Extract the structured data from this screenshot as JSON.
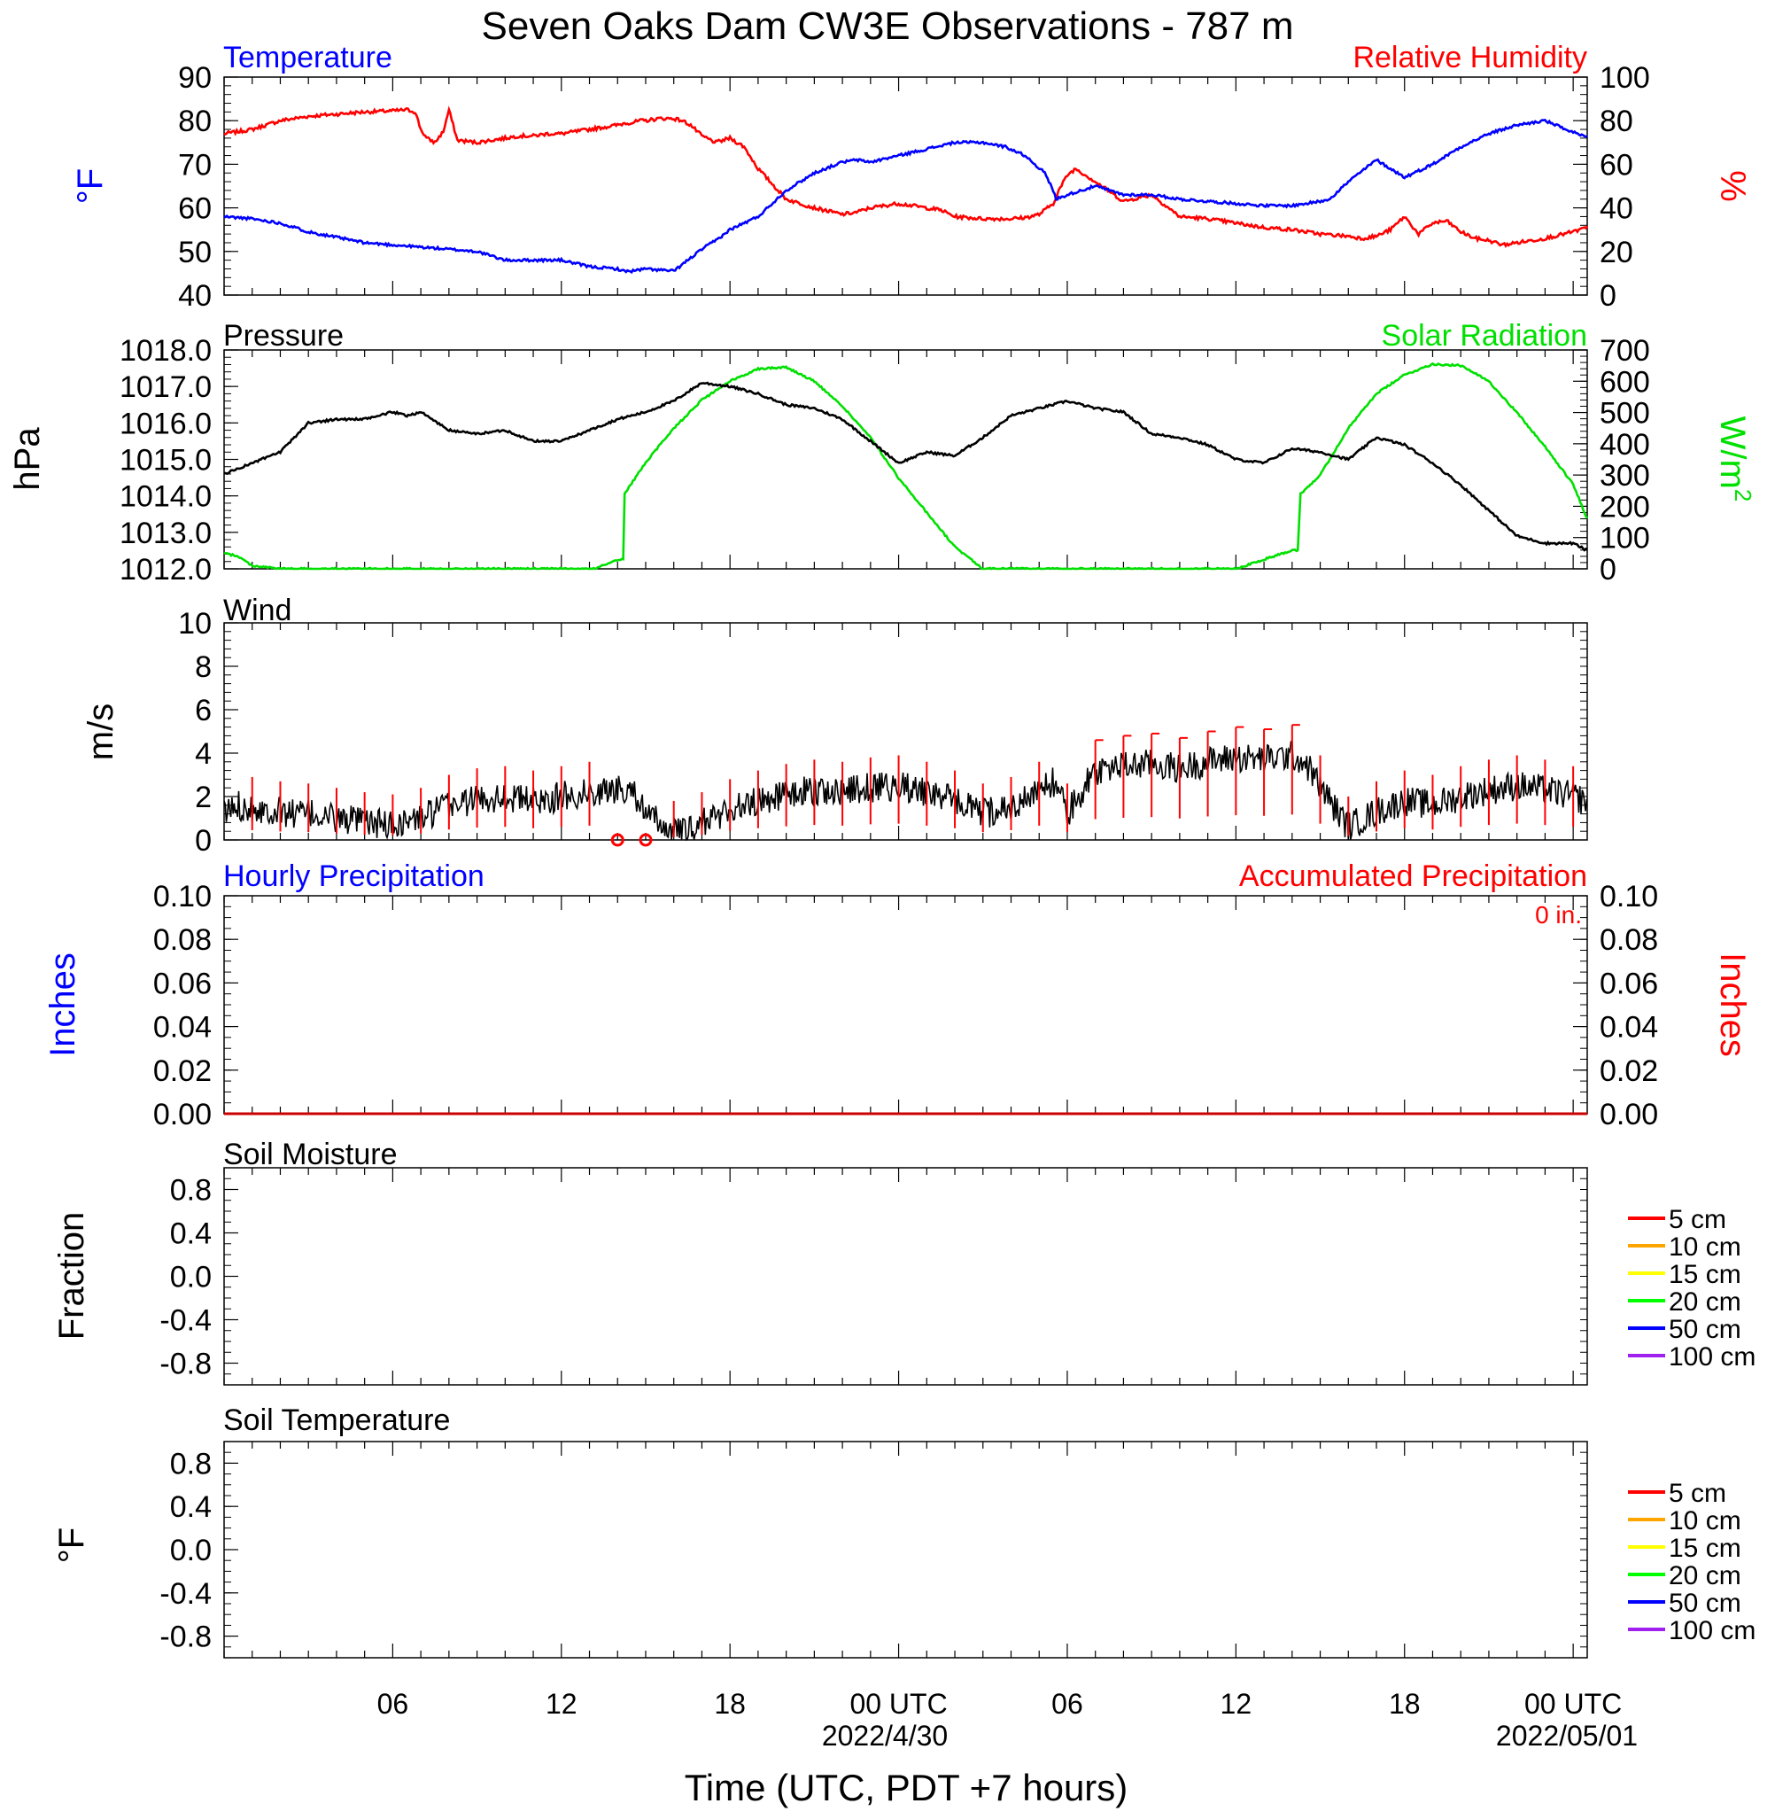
{
  "title": "Seven Oaks Dam CW3E Observations - 787 m",
  "colors": {
    "temperature": "#0000ff",
    "humidity": "#ff0000",
    "pressure": "#000000",
    "solar": "#00e000",
    "wind": "#000000",
    "barb": "#ff0000",
    "soil": [
      "#ff0000",
      "#ffa500",
      "#ffff00",
      "#00ff00",
      "#0000ff",
      "#a020f0"
    ]
  },
  "x_axis": {
    "label": "Time (UTC, PDT +7 hours)",
    "ticks": [
      "06",
      "12",
      "18",
      "00 UTC",
      "06",
      "12",
      "18",
      "00 UTC"
    ],
    "dates": [
      "2022/4/30",
      "2022/05/01"
    ]
  },
  "chart_data": [
    {
      "type": "line",
      "title_left": "Temperature",
      "title_right": "Relative Humidity",
      "ylabel_left": "°F",
      "ylabel_right": "%",
      "ylim_left": [
        40,
        90
      ],
      "ylim_right": [
        0,
        100
      ],
      "yticks_left": [
        "40",
        "50",
        "60",
        "70",
        "80",
        "90"
      ],
      "yticks_right": [
        "0",
        "20",
        "40",
        "60",
        "80",
        "100"
      ],
      "series": [
        {
          "name": "Temperature",
          "axis": "left",
          "x": [
            0,
            1,
            2,
            3,
            5,
            7,
            9,
            10,
            12,
            13,
            14,
            14.2,
            14.5,
            15,
            16,
            17,
            17.6,
            18,
            19,
            20,
            21,
            22,
            22.5,
            23,
            24,
            25,
            26,
            27,
            27.8,
            28.5,
            29.2,
            29.5,
            29.6,
            30,
            31,
            32,
            33,
            34,
            35,
            36,
            37,
            38,
            38.5,
            39,
            39.3,
            39.5,
            40,
            41,
            42,
            43,
            44,
            45,
            46,
            47,
            48.5
          ],
          "y": [
            58,
            57.5,
            56.5,
            54.5,
            52,
            51,
            50,
            48,
            48,
            46.5,
            46,
            45.5,
            45.5,
            46,
            45.5,
            50.5,
            53,
            55,
            58,
            64,
            68,
            70.5,
            71,
            70.5,
            72,
            73.5,
            75,
            75,
            74,
            72,
            68,
            64,
            62,
            63,
            65,
            63,
            63,
            62,
            61.5,
            61,
            60.5,
            60.5,
            61,
            61.5,
            62,
            63,
            66,
            71,
            67,
            70,
            74,
            77,
            79,
            80,
            76
          ]
        },
        {
          "name": "Relative Humidity",
          "axis": "right",
          "x": [
            0,
            1,
            1.5,
            2,
            3,
            4,
            5,
            6,
            6.5,
            6.8,
            7.0,
            7.2,
            7.5,
            7.8,
            8.0,
            8.3,
            9,
            10,
            10.5,
            11,
            11.5,
            12,
            13,
            14,
            14.3,
            14.5,
            14.8,
            15,
            15.5,
            16,
            16.3,
            16.6,
            17,
            17.5,
            18,
            18.5,
            19,
            20,
            21,
            22,
            22.5,
            23,
            24,
            24.5,
            25,
            25.5,
            26,
            27,
            28,
            28.5,
            29,
            29.5,
            29.7,
            30,
            30.3,
            31,
            32,
            33,
            34,
            35,
            36,
            37,
            38,
            38.5,
            39,
            40,
            40.5,
            41,
            41.5,
            42,
            42.5,
            43,
            43.5,
            44,
            44.5,
            45,
            45.5,
            46,
            47,
            48,
            48.5
          ],
          "y": [
            74,
            76,
            78,
            80,
            82,
            83,
            84,
            84.5,
            85,
            84,
            76,
            72,
            70,
            75,
            85,
            71,
            70,
            72,
            73,
            73,
            74,
            74,
            76,
            78,
            79,
            79,
            80,
            80,
            81,
            81,
            80,
            78,
            73,
            70,
            72,
            68,
            58,
            44,
            40,
            37,
            38,
            40,
            42,
            41,
            40,
            39,
            36,
            35,
            35,
            35.5,
            37,
            42,
            48,
            55,
            58,
            52,
            43,
            46,
            36,
            35,
            33,
            31,
            30,
            29,
            28,
            27,
            26,
            27,
            30,
            36,
            28,
            33,
            34,
            29,
            26,
            25,
            23,
            24,
            26,
            29,
            31
          ]
        }
      ]
    },
    {
      "type": "line",
      "title_left": "Pressure",
      "title_right": "Solar Radiation",
      "ylabel_left": "hPa",
      "ylabel_right": "W/m",
      "ylabel_right_sup": "2",
      "ylim_left": [
        1012,
        1018
      ],
      "ylim_right": [
        0,
        700
      ],
      "yticks_left": [
        "1012.0",
        "1013.0",
        "1014.0",
        "1015.0",
        "1016.0",
        "1017.0",
        "1018.0"
      ],
      "yticks_right": [
        "0",
        "100",
        "200",
        "300",
        "400",
        "500",
        "600",
        "700"
      ],
      "series": [
        {
          "name": "Pressure",
          "axis": "left",
          "x": [
            0,
            1,
            2,
            3,
            4,
            5,
            6,
            6.5,
            7,
            8,
            9,
            10,
            11,
            12,
            13,
            14,
            15,
            16,
            17,
            18,
            18.5,
            19,
            20,
            21,
            22,
            23,
            24,
            25,
            26,
            27,
            28,
            29,
            30,
            31,
            32,
            33,
            34,
            35,
            36,
            37,
            38,
            39,
            40,
            40.5,
            41,
            42,
            43,
            44,
            45,
            46,
            47,
            48,
            48.5
          ],
          "y": [
            1014.6,
            1014.9,
            1015.2,
            1016.0,
            1016.1,
            1016.1,
            1016.3,
            1016.2,
            1016.3,
            1015.8,
            1015.7,
            1015.8,
            1015.5,
            1015.5,
            1015.8,
            1016.1,
            1016.3,
            1016.6,
            1017.1,
            1017.0,
            1016.9,
            1016.8,
            1016.5,
            1016.4,
            1016.1,
            1015.5,
            1014.9,
            1015.2,
            1015.1,
            1015.6,
            1016.2,
            1016.4,
            1016.6,
            1016.4,
            1016.3,
            1015.7,
            1015.6,
            1015.4,
            1015.0,
            1014.9,
            1015.3,
            1015.2,
            1015.0,
            1015.3,
            1015.6,
            1015.4,
            1014.9,
            1014.3,
            1013.6,
            1012.9,
            1012.7,
            1012.7,
            1012.5
          ]
        },
        {
          "name": "Solar Radiation",
          "axis": "right",
          "x": [
            0,
            0.5,
            1,
            2,
            5,
            10,
            12,
            13.2,
            14,
            14.2,
            14.25,
            15,
            16,
            17,
            18,
            19,
            20,
            21,
            22,
            23,
            24,
            25,
            26,
            27,
            28,
            34,
            36,
            37,
            38,
            38.2,
            38.3,
            39,
            40,
            41,
            42,
            43,
            44,
            45,
            46,
            47,
            48,
            48.5
          ],
          "y": [
            50,
            40,
            10,
            0,
            0,
            0,
            0,
            0,
            30,
            30,
            240,
            340,
            450,
            540,
            600,
            640,
            645,
            600,
            520,
            420,
            290,
            180,
            70,
            0,
            0,
            0,
            0,
            30,
            60,
            60,
            240,
            300,
            450,
            560,
            620,
            655,
            650,
            600,
            500,
            390,
            270,
            160
          ]
        }
      ]
    },
    {
      "type": "line",
      "title": "Wind",
      "ylabel": "m/s",
      "ylim": [
        0,
        10
      ],
      "yticks": [
        "0",
        "2",
        "4",
        "6",
        "8",
        "10"
      ],
      "series": [
        {
          "name": "Wind speed",
          "x": [
            0,
            0.5,
            1,
            2,
            3,
            4,
            5,
            6,
            7,
            8,
            9,
            10,
            11,
            12,
            13,
            14,
            14.5,
            15,
            15.5,
            16,
            16.5,
            17,
            18,
            19,
            20,
            21,
            22,
            23,
            24,
            25,
            26,
            27,
            28,
            29,
            29.5,
            30,
            31,
            32,
            33,
            34,
            35,
            36,
            37,
            38,
            38.5,
            39,
            39.5,
            40,
            41,
            42,
            43,
            44,
            45,
            46,
            47,
            48,
            48.5
          ],
          "y": [
            1.2,
            1.6,
            1.5,
            1.3,
            1.2,
            1.0,
            0.8,
            0.7,
            1.0,
            1.6,
            1.9,
            2.0,
            1.8,
            2.0,
            2.2,
            2.3,
            2.5,
            1.1,
            0.8,
            0.4,
            0.3,
            0.8,
            1.4,
            1.8,
            2.1,
            2.3,
            2.2,
            2.4,
            2.5,
            2.2,
            1.8,
            1.2,
            1.5,
            2.2,
            2.7,
            1.2,
            3.2,
            3.4,
            3.5,
            3.3,
            3.6,
            3.8,
            3.7,
            3.9,
            3.5,
            2.5,
            1.5,
            0.6,
            1.3,
            1.8,
            1.6,
            2.0,
            2.3,
            2.5,
            2.3,
            2.0,
            1.8
          ]
        }
      ]
    },
    {
      "type": "line",
      "title_left": "Hourly Precipitation",
      "title_right": "Accumulated Precipitation",
      "annotation": "0 in.",
      "ylabel_left": "Inches",
      "ylabel_right": "Inches",
      "ylim_left": [
        0,
        0.1
      ],
      "ylim_right": [
        0,
        0.1
      ],
      "yticks_left": [
        "0.00",
        "0.02",
        "0.04",
        "0.06",
        "0.08",
        "0.10"
      ],
      "yticks_right": [
        "0.00",
        "0.02",
        "0.04",
        "0.06",
        "0.08",
        "0.10"
      ],
      "series": [
        {
          "name": "Accumulated Precipitation",
          "x": [
            0,
            48.5
          ],
          "y": [
            0,
            0
          ]
        }
      ]
    },
    {
      "type": "line",
      "title": "Soil Moisture",
      "ylabel": "Fraction",
      "ylim": [
        -1,
        1
      ],
      "yticks": [
        "-0.8",
        "-0.4",
        "0.0",
        "0.4",
        "0.8"
      ],
      "legend": [
        "5 cm",
        "10 cm",
        "15 cm",
        "20 cm",
        "50 cm",
        "100 cm"
      ],
      "series": []
    },
    {
      "type": "line",
      "title": "Soil Temperature",
      "ylabel": "°F",
      "ylim": [
        -1,
        1
      ],
      "yticks": [
        "-0.8",
        "-0.4",
        "0.0",
        "0.4",
        "0.8"
      ],
      "legend": [
        "5 cm",
        "10 cm",
        "15 cm",
        "20 cm",
        "50 cm",
        "100 cm"
      ],
      "series": []
    }
  ]
}
